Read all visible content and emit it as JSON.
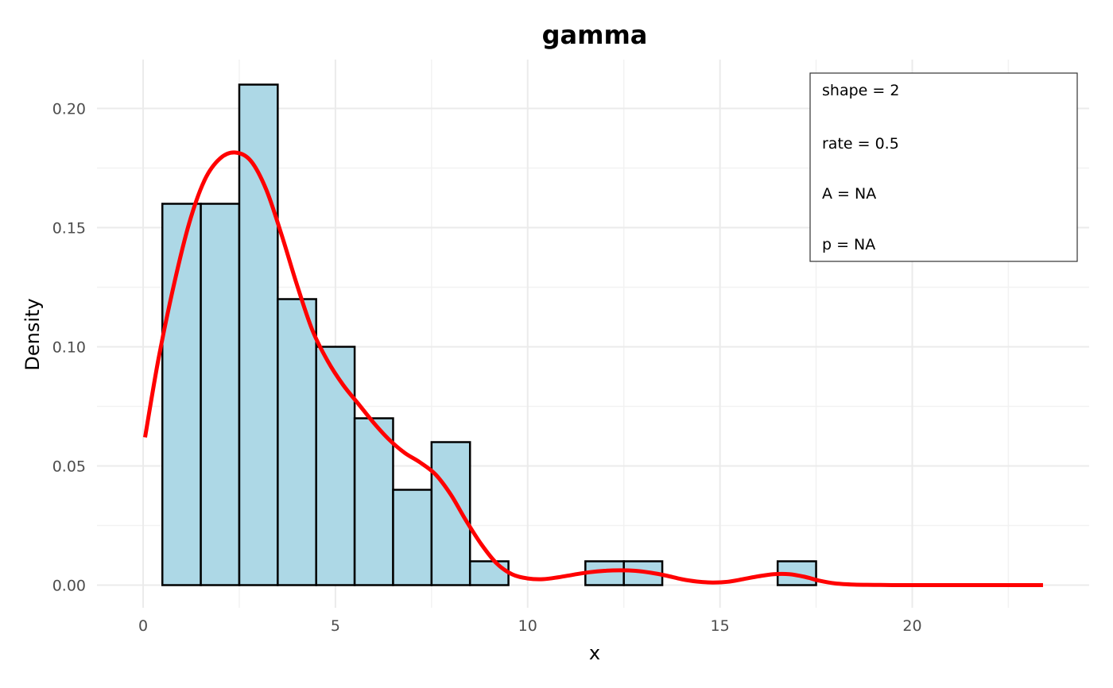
{
  "chart_data": {
    "type": "bar",
    "title": "gamma",
    "xlabel": "x",
    "ylabel": "Density",
    "xlim": [
      -1.2,
      24.6
    ],
    "ylim": [
      -0.0095,
      0.2205
    ],
    "x_ticks": [
      0,
      5,
      10,
      15,
      20
    ],
    "x_tick_labels": [
      "0",
      "5",
      "10",
      "15",
      "20"
    ],
    "x_minor_ticks": [
      2.5,
      7.5,
      12.5,
      17.5,
      22.5
    ],
    "y_ticks": [
      0,
      0.05,
      0.1,
      0.15,
      0.2
    ],
    "y_tick_labels": [
      "0.00",
      "0.05",
      "0.10",
      "0.15",
      "0.20"
    ],
    "y_minor_ticks": [
      0.025,
      0.075,
      0.125,
      0.175
    ],
    "grid": true,
    "bins": [
      {
        "x0": 0.5,
        "x1": 1.5,
        "value": 0.16
      },
      {
        "x0": 1.5,
        "x1": 2.5,
        "value": 0.16
      },
      {
        "x0": 2.5,
        "x1": 3.5,
        "value": 0.21
      },
      {
        "x0": 3.5,
        "x1": 4.5,
        "value": 0.12
      },
      {
        "x0": 4.5,
        "x1": 5.5,
        "value": 0.1
      },
      {
        "x0": 5.5,
        "x1": 6.5,
        "value": 0.07
      },
      {
        "x0": 6.5,
        "x1": 7.5,
        "value": 0.04
      },
      {
        "x0": 7.5,
        "x1": 8.5,
        "value": 0.06
      },
      {
        "x0": 8.5,
        "x1": 9.5,
        "value": 0.01
      },
      {
        "x0": 9.5,
        "x1": 10.5,
        "value": 0.0
      },
      {
        "x0": 10.5,
        "x1": 11.5,
        "value": 0.0
      },
      {
        "x0": 11.5,
        "x1": 12.5,
        "value": 0.01
      },
      {
        "x0": 12.5,
        "x1": 13.5,
        "value": 0.01
      },
      {
        "x0": 13.5,
        "x1": 14.5,
        "value": 0.0
      },
      {
        "x0": 14.5,
        "x1": 15.5,
        "value": 0.0
      },
      {
        "x0": 15.5,
        "x1": 16.5,
        "value": 0.0
      },
      {
        "x0": 16.5,
        "x1": 17.5,
        "value": 0.01
      }
    ],
    "density_curve": {
      "color": "#ff0000",
      "x": [
        0.05,
        0.4,
        0.8,
        1.2,
        1.6,
        2.0,
        2.4,
        2.8,
        3.2,
        3.6,
        4.0,
        4.4,
        4.8,
        5.2,
        5.6,
        6.0,
        6.4,
        6.8,
        7.2,
        7.6,
        8.0,
        8.4,
        8.8,
        9.2,
        9.6,
        10.0,
        10.4,
        10.8,
        11.2,
        11.6,
        12.0,
        12.4,
        12.8,
        13.2,
        13.6,
        14.0,
        14.4,
        14.8,
        15.2,
        15.6,
        16.0,
        16.4,
        16.8,
        17.2,
        17.6,
        18.0,
        18.5,
        19.0,
        19.5,
        20.0,
        21.0,
        22.0,
        23.4
      ],
      "y": [
        0.062,
        0.095,
        0.126,
        0.152,
        0.17,
        0.179,
        0.1815,
        0.178,
        0.166,
        0.147,
        0.126,
        0.107,
        0.094,
        0.084,
        0.076,
        0.068,
        0.061,
        0.0555,
        0.0515,
        0.0465,
        0.038,
        0.027,
        0.017,
        0.009,
        0.0045,
        0.0028,
        0.0025,
        0.0033,
        0.0044,
        0.0054,
        0.006,
        0.0062,
        0.006,
        0.0052,
        0.004,
        0.0025,
        0.0015,
        0.0011,
        0.0014,
        0.0025,
        0.0037,
        0.0046,
        0.0046,
        0.0035,
        0.0018,
        0.0007,
        0.0002,
        0.0001,
        0.0,
        0.0,
        0.0,
        0.0,
        0.0
      ]
    },
    "bar_fill": "#add8e6",
    "bar_stroke": "#000000",
    "annotation": {
      "lines": [
        "shape = 2",
        "rate = 0.5",
        "A = NA",
        "p = NA"
      ]
    }
  }
}
